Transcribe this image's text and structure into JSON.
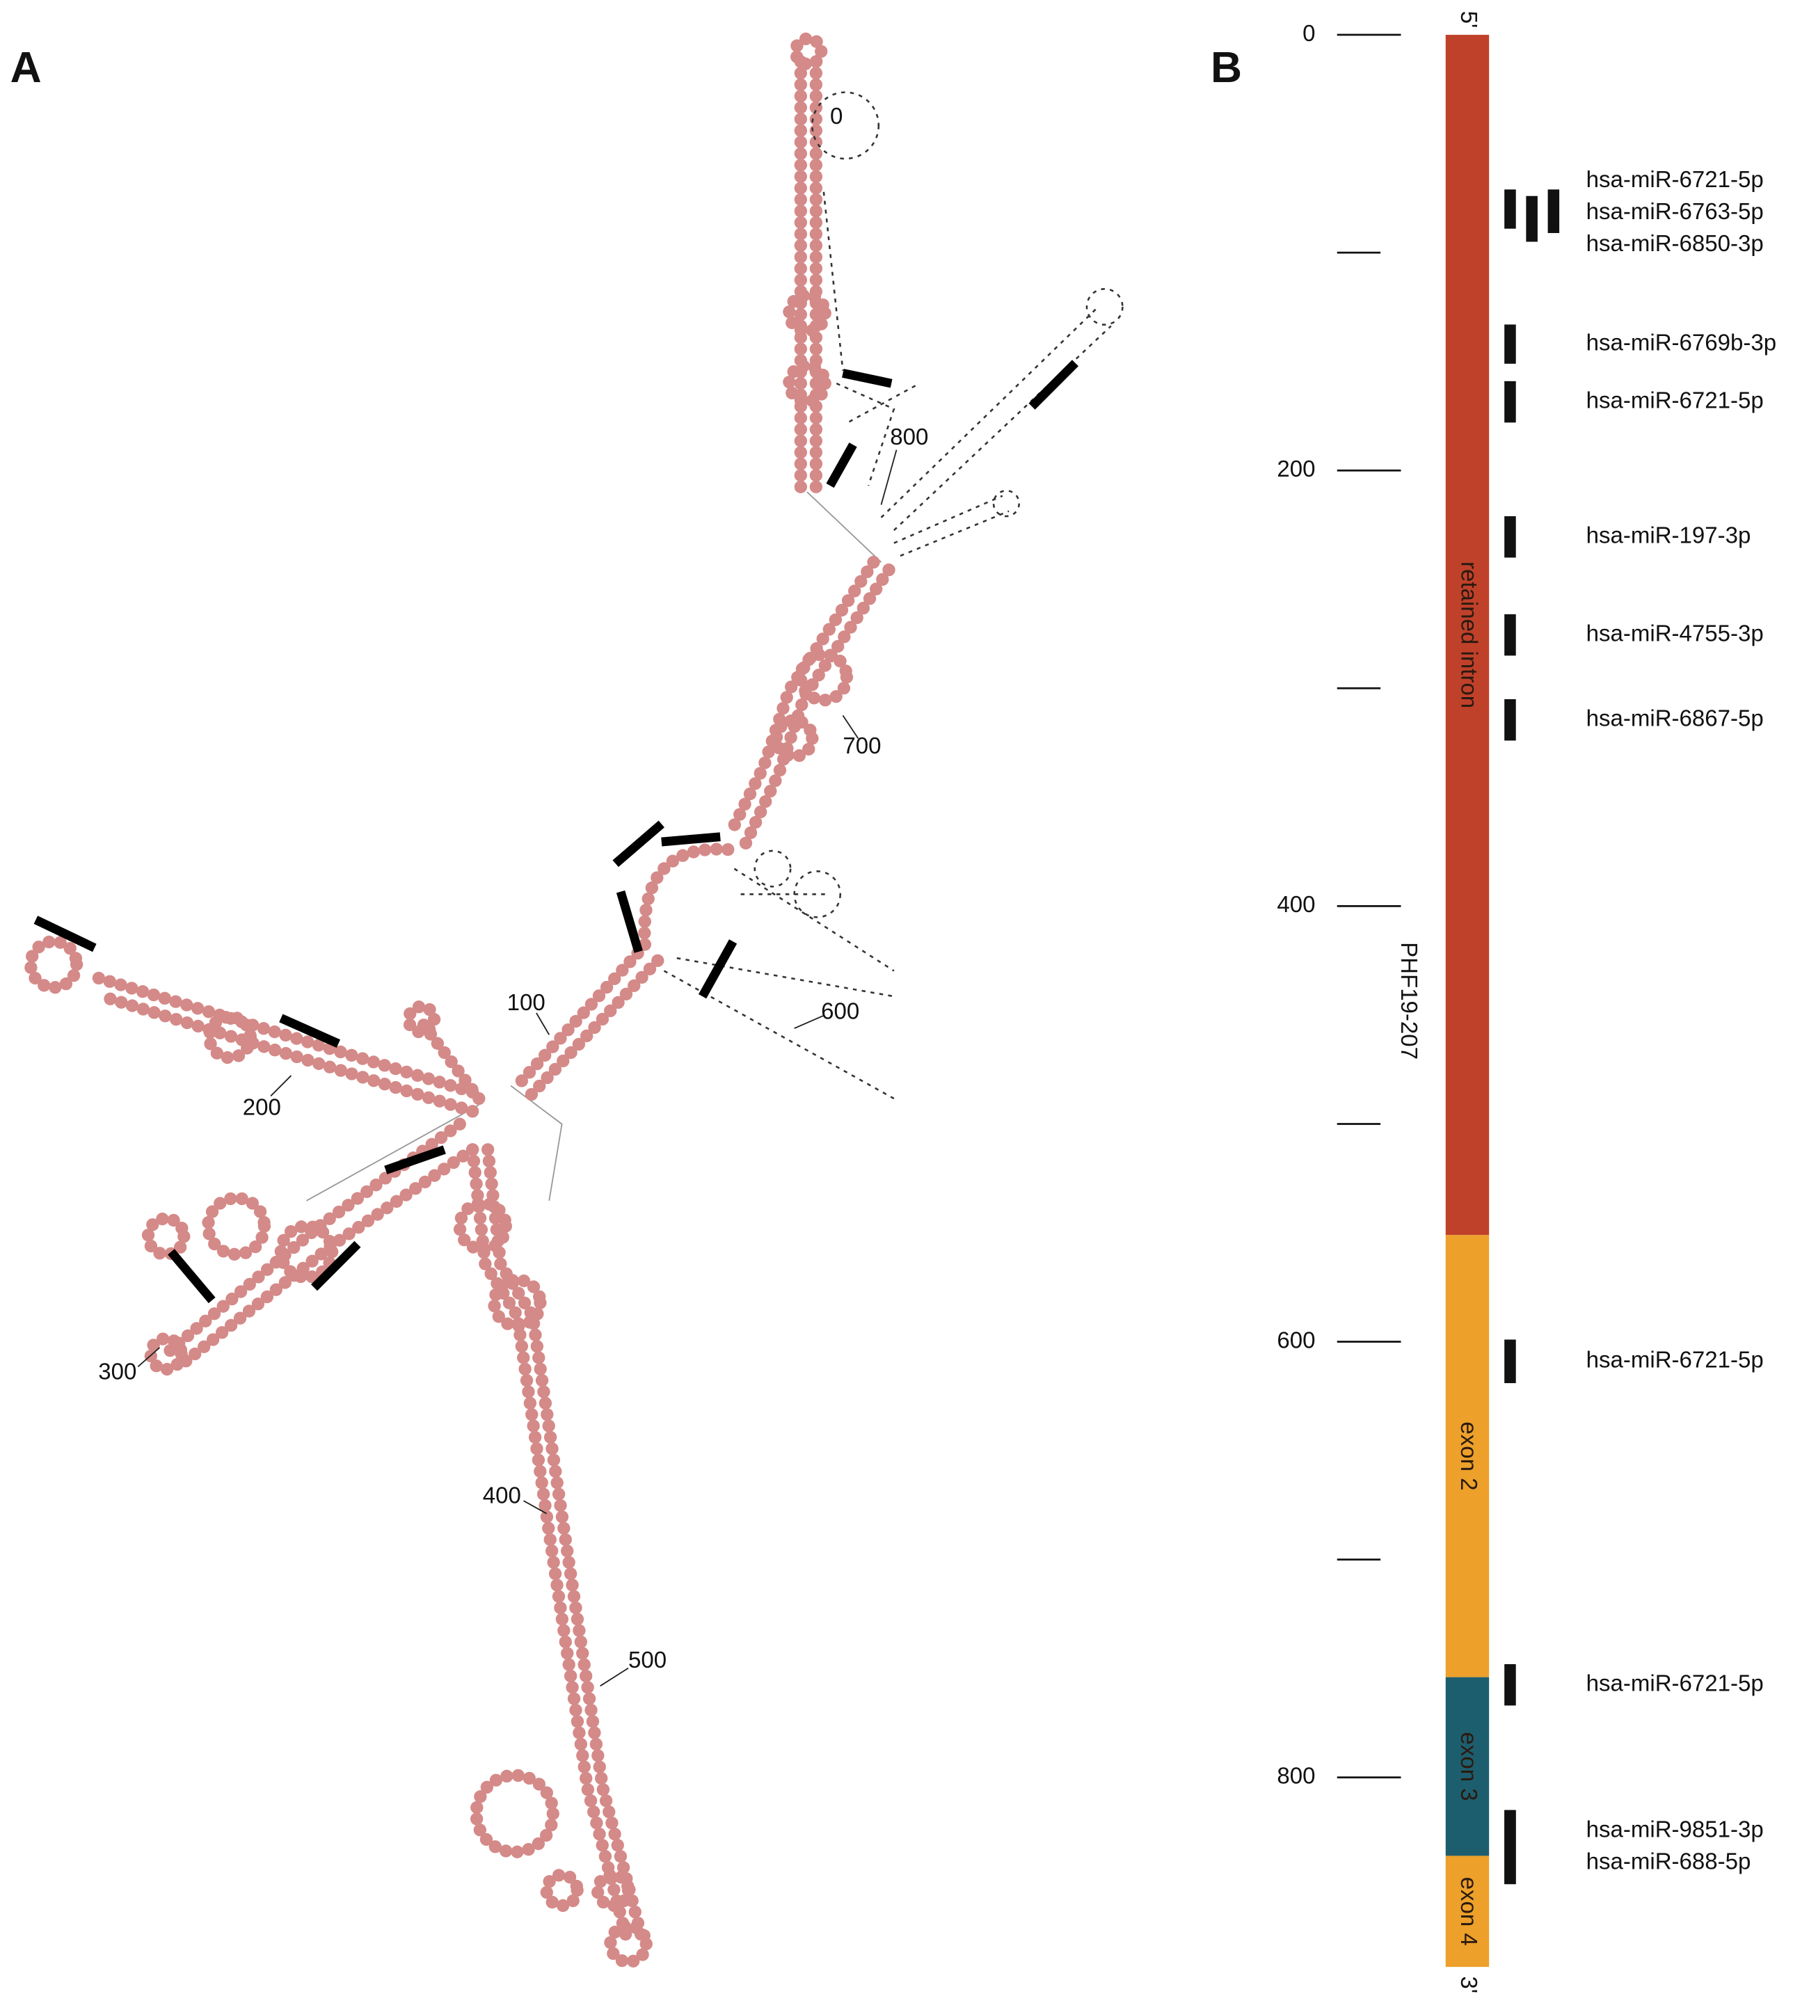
{
  "panel_a": {
    "label": "A",
    "position_labels": [
      "0",
      "100",
      "200",
      "300",
      "400",
      "500",
      "600",
      "700",
      "800"
    ]
  },
  "panel_b": {
    "label": "B",
    "transcript": "PHF19-207",
    "five_prime": "5'",
    "three_prime": "3'",
    "ylim": [
      0,
      887
    ],
    "yticks": [
      0,
      200,
      400,
      600,
      800
    ],
    "minor_ticks": [
      100,
      300,
      500,
      700
    ],
    "segments": [
      {
        "name": "retained intron",
        "start": 0,
        "end": 551,
        "color": "#c0412a"
      },
      {
        "name": "exon 2",
        "start": 551,
        "end": 754,
        "color": "#eda02a"
      },
      {
        "name": "exon 3",
        "start": 754,
        "end": 836,
        "color": "#1d5e6e"
      },
      {
        "name": "exon 4",
        "start": 836,
        "end": 887,
        "color": "#eda02a"
      }
    ],
    "mirna_color": "#111111",
    "mirnas": [
      {
        "name": "hsa-miR-6721-5p",
        "start": 71,
        "end": 89
      },
      {
        "name": "hsa-miR-6763-5p",
        "start": 74,
        "end": 95
      },
      {
        "name": "hsa-miR-6850-3p",
        "start": 71,
        "end": 91
      },
      {
        "name": "hsa-miR-6769b-3p",
        "start": 133,
        "end": 151
      },
      {
        "name": "hsa-miR-6721-5p",
        "start": 159,
        "end": 178
      },
      {
        "name": "hsa-miR-197-3p",
        "start": 221,
        "end": 240
      },
      {
        "name": "hsa-miR-4755-3p",
        "start": 266,
        "end": 285
      },
      {
        "name": "hsa-miR-6867-5p",
        "start": 305,
        "end": 324
      },
      {
        "name": "hsa-miR-6721-5p",
        "start": 599,
        "end": 619
      },
      {
        "name": "hsa-miR-6721-5p",
        "start": 748,
        "end": 767
      },
      {
        "name": "hsa-miR-9851-3p",
        "start": 815,
        "end": 849
      },
      {
        "name": "hsa-miR-688-5p",
        "start": 815,
        "end": 849
      }
    ]
  }
}
